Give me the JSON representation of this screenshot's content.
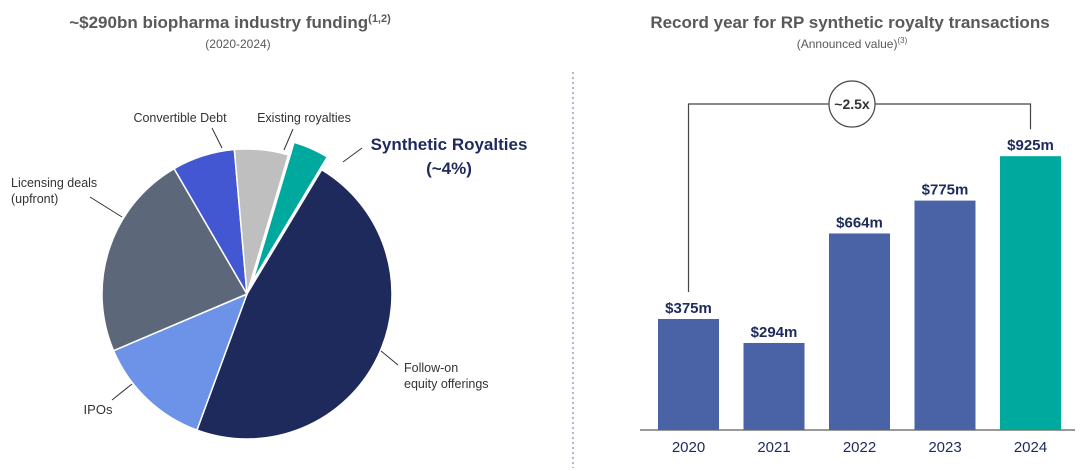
{
  "left": {
    "title": "~$290bn biopharma industry funding",
    "title_sup": "(1,2)",
    "subtitle": "(2020-2024)"
  },
  "right": {
    "title": "Record year for RP synthetic royalty transactions",
    "subtitle": "(Announced value)",
    "subtitle_sup": "(3)",
    "growth_label": "~2.5x"
  },
  "colors": {
    "title": "#595959",
    "navy": "#1f2a5c",
    "bar": "#4a63a6",
    "teal": "#00a99d",
    "blue_light": "#6d93e8",
    "slate": "#5c6779",
    "royal": "#4457d3",
    "grey": "#bfbfbf",
    "divider": "#8a93b2"
  },
  "chart_data": [
    {
      "type": "pie",
      "title": "~$290bn biopharma industry funding",
      "subtitle": "(2020-2024)",
      "slices": [
        {
          "label": "Follow-on equity offerings",
          "value": 47,
          "color": "#1f2a5c"
        },
        {
          "label": "IPOs",
          "value": 13,
          "color": "#6d93e8"
        },
        {
          "label": "Licensing deals (upfront)",
          "value": 23,
          "color": "#5c6779"
        },
        {
          "label": "Convertible Debt",
          "value": 7,
          "color": "#4457d3"
        },
        {
          "label": "Existing royalties",
          "value": 6,
          "color": "#bfbfbf"
        },
        {
          "label": "Synthetic Royalties",
          "value": 4,
          "color": "#00a99d",
          "exploded": true,
          "note": "(~4%)"
        }
      ]
    },
    {
      "type": "bar",
      "title": "Record year for RP synthetic royalty transactions",
      "subtitle": "(Announced value)",
      "categories": [
        "2020",
        "2021",
        "2022",
        "2023",
        "2024"
      ],
      "values": [
        375,
        294,
        664,
        775,
        925
      ],
      "value_labels": [
        "$375m",
        "$294m",
        "$664m",
        "$775m",
        "$925m"
      ],
      "ylim": [
        0,
        1000
      ],
      "colors": [
        "#4a63a6",
        "#4a63a6",
        "#4a63a6",
        "#4a63a6",
        "#00a99d"
      ],
      "annotation": "~2.5x"
    }
  ]
}
